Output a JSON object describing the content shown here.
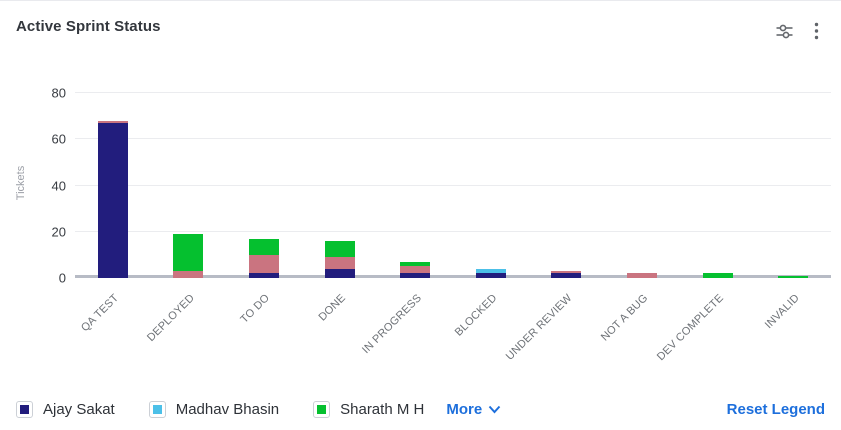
{
  "header": {
    "title": "Active Sprint Status"
  },
  "chart_data": {
    "type": "bar",
    "stacked": true,
    "title": "Active Sprint Status",
    "xlabel": "",
    "ylabel": "Tickets",
    "ylim": [
      0,
      80
    ],
    "yticks": [
      0,
      20,
      40,
      60,
      80
    ],
    "grid": true,
    "legend_position": "bottom",
    "categories": [
      "QA TEST",
      "DEPLOYED",
      "TO DO",
      "DONE",
      "IN PROGRESS",
      "BLOCKED",
      "UNDER REVIEW",
      "NOT A BUG",
      "DEV COMPLETE",
      "INVALID"
    ],
    "series": [
      {
        "name": "Ajay Sakat",
        "color": "#221d7d",
        "legend_visible": true,
        "values": [
          67,
          0,
          2,
          4,
          2,
          2,
          2,
          0,
          0,
          0
        ]
      },
      {
        "name": "Madhav Bhasin",
        "color": "#4cc0e8",
        "legend_visible": true,
        "values": [
          0,
          0,
          0,
          0,
          0,
          2,
          0,
          0,
          0,
          0
        ]
      },
      {
        "name": "",
        "color": "#ca7480",
        "legend_visible": false,
        "values": [
          1,
          3,
          8,
          5,
          3,
          0,
          1,
          2,
          0,
          0
        ]
      },
      {
        "name": "Sharath M H",
        "color": "#05c02f",
        "legend_visible": true,
        "values": [
          0,
          16,
          7,
          7,
          2,
          0,
          0,
          0,
          2,
          1
        ]
      }
    ]
  },
  "legend": {
    "items": [
      {
        "label": "Ajay Sakat",
        "color": "#221d7d"
      },
      {
        "label": "Madhav Bhasin",
        "color": "#4cc0e8"
      },
      {
        "label": "Sharath M H",
        "color": "#05c02f"
      }
    ],
    "more_label": "More",
    "reset_label": "Reset Legend"
  }
}
